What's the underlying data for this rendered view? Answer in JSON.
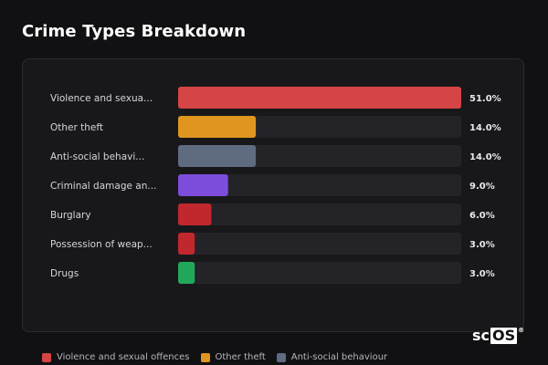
{
  "title": "Crime Types Breakdown",
  "colors": {
    "track": "#232328",
    "card_bg": "#18181b"
  },
  "chart_data": {
    "type": "bar",
    "orientation": "horizontal",
    "categories": [
      "Violence and sexua...",
      "Other theft",
      "Anti-social behavi...",
      "Criminal damage an...",
      "Burglary",
      "Possession of weap...",
      "Drugs"
    ],
    "values": [
      51.0,
      14.0,
      14.0,
      9.0,
      6.0,
      3.0,
      3.0
    ],
    "value_labels": [
      "51.0%",
      "14.0%",
      "14.0%",
      "9.0%",
      "6.0%",
      "3.0%",
      "3.0%"
    ],
    "colors": [
      "#d64545",
      "#e0951f",
      "#5f6b80",
      "#7d4ddc",
      "#c0282d",
      "#c0282d",
      "#22a85a"
    ],
    "xlim": [
      0,
      51.0
    ],
    "grid": false
  },
  "legend": [
    {
      "label": "Violence and sexual offences",
      "color": "#d64545"
    },
    {
      "label": "Other theft",
      "color": "#e0951f"
    },
    {
      "label": "Anti-social behaviour",
      "color": "#5f6b80"
    }
  ],
  "logo": {
    "prefix": "sc",
    "boxed": "OS",
    "mark": "®"
  }
}
